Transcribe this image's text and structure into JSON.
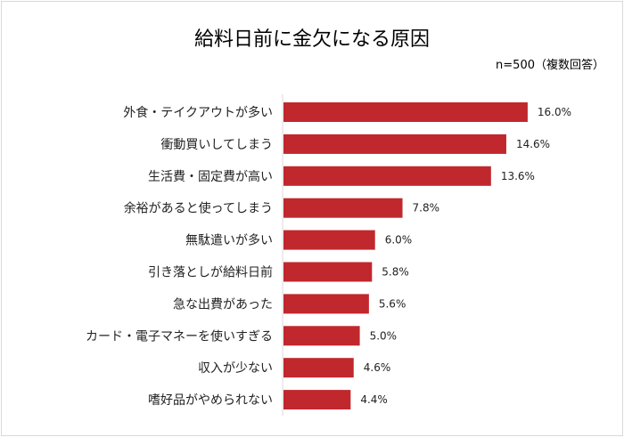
{
  "chart_data": {
    "type": "bar",
    "orientation": "horizontal",
    "title": "給料日前に金欠になる原因",
    "subtitle": "n=500（複数回答）",
    "categories": [
      "外食・テイクアウトが多い",
      "衝動買いしてしまう",
      "生活費・固定費が高い",
      "余裕があると使ってしまう",
      "無駄遣いが多い",
      "引き落としが給料日前",
      "急な出費があった",
      "カード・電子マネーを使いすぎる",
      "収入が少ない",
      "嗜好品がやめられない"
    ],
    "values": [
      16.0,
      14.6,
      13.6,
      7.8,
      6.0,
      5.8,
      5.6,
      5.0,
      4.6,
      4.4
    ],
    "value_labels": [
      "16.0%",
      "14.6%",
      "13.6%",
      "7.8%",
      "6.0%",
      "5.8%",
      "5.6%",
      "5.0%",
      "4.6%",
      "4.4%"
    ],
    "unit": "%",
    "bar_color": "#c0282d",
    "grid": false,
    "legend": "none"
  }
}
